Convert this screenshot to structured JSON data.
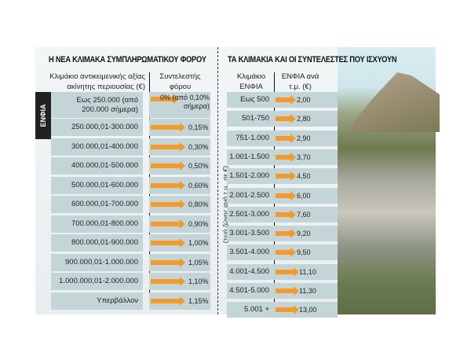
{
  "left": {
    "title": "Η ΝΕΑ ΚΛΙΜΑΚΑ ΣΥΜΠΛΗΡΩΜΑΤΙΚΟΥ ΦΟΡΟΥ",
    "col1": "Κλιμάκιο αντικειμενικής αξίας ακίνητης περιουσίας (€)",
    "col2": "Συντελεστής φόρου",
    "side_label": "ΕΝΦΙΑ",
    "rows": [
      {
        "range": "Εως 250.000 (από 200.000 σήμερα)",
        "rate": "0% (από 0,10% σήμερα)"
      },
      {
        "range": "250.000,01-300.000",
        "rate": "0,15%"
      },
      {
        "range": "300.000,01-400.000",
        "rate": "0,30%"
      },
      {
        "range": "400.000,01-500.000",
        "rate": "0,50%"
      },
      {
        "range": "500.000,01-600.000",
        "rate": "0,60%"
      },
      {
        "range": "600.000,01-700.000",
        "rate": "0,80%"
      },
      {
        "range": "700.000,01-800.000",
        "rate": "0,90%"
      },
      {
        "range": "800.000,01-900.000",
        "rate": "1,00%"
      },
      {
        "range": "900.000,01-1.000.000",
        "rate": "1,05%"
      },
      {
        "range": "1.000.000,01-2.000.000",
        "rate": "1,10%"
      },
      {
        "range": "Υπερβάλλον",
        "rate": "1,15%"
      }
    ]
  },
  "right": {
    "title": "ΤΑ ΚΛΙΜΑΚΙΑ ΚΑΙ ΟΙ ΣΥΝΤΕΛΕΣΤΕΣ ΠΟΥ ΙΣΧΥΟΥΝ",
    "col1": "Κλιμάκιο ΕΝΦΙΑ",
    "col2": "ΕΝΦΙΑ ανά τ.μ. (€)",
    "side_label": "(τιμή ζώνης ανά τ.μ., σε €)",
    "rows": [
      {
        "range": "Εως 500",
        "value": "2,00"
      },
      {
        "range": "501-750",
        "value": "2,80"
      },
      {
        "range": "751-1.000",
        "value": "2,90"
      },
      {
        "range": "1.001-1.500",
        "value": "3,70"
      },
      {
        "range": "1.501-2.000",
        "value": "4,50"
      },
      {
        "range": "2.001-2.500",
        "value": "6,00"
      },
      {
        "range": "2.501-3.000",
        "value": "7,60"
      },
      {
        "range": "3.001-3.500",
        "value": "9,20"
      },
      {
        "range": "3.501-4.000",
        "value": "9,50"
      },
      {
        "range": "4.001-4.500",
        "value": "11,10"
      },
      {
        "range": "4.501-5.000",
        "value": "11,30"
      },
      {
        "range": "5.001 +",
        "value": "13,00"
      }
    ]
  }
}
